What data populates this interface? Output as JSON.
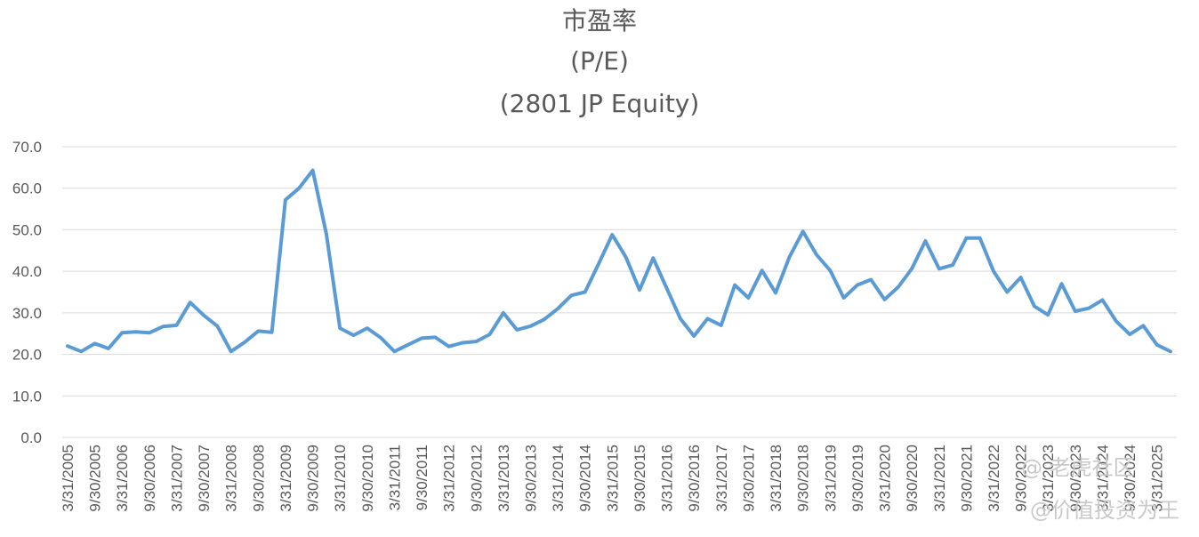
{
  "chart_data": {
    "type": "line",
    "title": "市盈率",
    "subtitle": "(P/E)",
    "subtitle2": "(2801 JP Equity)",
    "xlabel": "",
    "ylabel": "",
    "ylim": [
      0,
      70
    ],
    "yticks": [
      "0.0",
      "10.0",
      "20.0",
      "30.0",
      "40.0",
      "50.0",
      "60.0",
      "70.0"
    ],
    "grid": true,
    "line_color": "#5b9bd5",
    "x": [
      "3/31/2005",
      "6/30/2005",
      "9/30/2005",
      "12/31/2005",
      "3/31/2006",
      "6/30/2006",
      "9/30/2006",
      "12/31/2006",
      "3/31/2007",
      "6/30/2007",
      "9/30/2007",
      "12/31/2007",
      "3/31/2008",
      "6/30/2008",
      "9/30/2008",
      "12/31/2008",
      "3/31/2009",
      "6/30/2009",
      "9/30/2009",
      "12/31/2009",
      "3/31/2010",
      "6/30/2010",
      "9/30/2010",
      "12/31/2010",
      "3/31/2011",
      "6/30/2011",
      "9/30/2011",
      "12/31/2011",
      "3/31/2012",
      "6/30/2012",
      "9/30/2012",
      "12/31/2012",
      "3/31/2013",
      "6/30/2013",
      "9/30/2013",
      "12/31/2013",
      "3/31/2014",
      "6/30/2014",
      "9/30/2014",
      "12/31/2014",
      "3/31/2015",
      "6/30/2015",
      "9/30/2015",
      "12/31/2015",
      "3/31/2016",
      "6/30/2016",
      "9/30/2016",
      "12/31/2016",
      "3/31/2017",
      "6/30/2017",
      "9/30/2017",
      "12/31/2017",
      "3/31/2018",
      "6/30/2018",
      "9/30/2018",
      "12/31/2018",
      "3/31/2019",
      "6/30/2019",
      "9/30/2019",
      "12/31/2019",
      "3/31/2020",
      "6/30/2020",
      "9/30/2020",
      "12/31/2020",
      "3/31/2021",
      "6/30/2021",
      "9/30/2021",
      "12/31/2021",
      "3/31/2022",
      "6/30/2022",
      "9/30/2022",
      "12/31/2022",
      "3/31/2023",
      "6/30/2023",
      "9/30/2023",
      "12/31/2023",
      "3/31/2024",
      "6/30/2024",
      "9/30/2024",
      "12/31/2024",
      "3/31/2025",
      "6/30/2025"
    ],
    "xticks": [
      "3/31/2005",
      "9/30/2005",
      "3/31/2006",
      "9/30/2006",
      "3/31/2007",
      "9/30/2007",
      "3/31/2008",
      "9/30/2008",
      "3/31/2009",
      "9/30/2009",
      "3/31/2010",
      "9/30/2010",
      "3/31/2011",
      "9/30/2011",
      "3/31/2012",
      "9/30/2012",
      "3/31/2013",
      "9/30/2013",
      "3/31/2014",
      "9/30/2014",
      "3/31/2015",
      "9/30/2015",
      "3/31/2016",
      "9/30/2016",
      "3/31/2017",
      "9/30/2017",
      "3/31/2018",
      "9/30/2018",
      "3/31/2019",
      "9/30/2019",
      "3/31/2020",
      "9/30/2020",
      "3/31/2021",
      "9/30/2021",
      "3/31/2022",
      "9/30/2022",
      "3/31/2023",
      "9/30/2023",
      "3/31/2024",
      "9/30/2024",
      "3/31/2025"
    ],
    "values": [
      22.0,
      20.7,
      22.6,
      21.4,
      25.2,
      25.4,
      25.2,
      26.7,
      27.0,
      32.5,
      29.4,
      26.8,
      20.7,
      22.9,
      25.6,
      25.3,
      57.2,
      60.0,
      64.3,
      49.0,
      26.3,
      24.6,
      26.3,
      24.0,
      20.7,
      22.3,
      23.9,
      24.1,
      21.9,
      22.8,
      23.1,
      24.8,
      30.0,
      25.9,
      26.8,
      28.4,
      31.0,
      34.2,
      35.0,
      41.8,
      48.8,
      43.4,
      35.5,
      43.2,
      35.9,
      28.6,
      24.4,
      28.6,
      27.0,
      36.7,
      33.6,
      40.2,
      34.8,
      43.4,
      49.6,
      44.0,
      40.2,
      33.6,
      36.7,
      38.0,
      33.2,
      36.2,
      40.6,
      47.3,
      40.6,
      41.5,
      48.0,
      48.0,
      40.0,
      35.0,
      38.5,
      31.6,
      29.5,
      37.0,
      30.4,
      31.1,
      33.1,
      28.0,
      24.8,
      26.9,
      22.3,
      20.7
    ]
  },
  "watermark": {
    "line1": "@ 老虎社区",
    "line2": "@价值投资为王"
  }
}
